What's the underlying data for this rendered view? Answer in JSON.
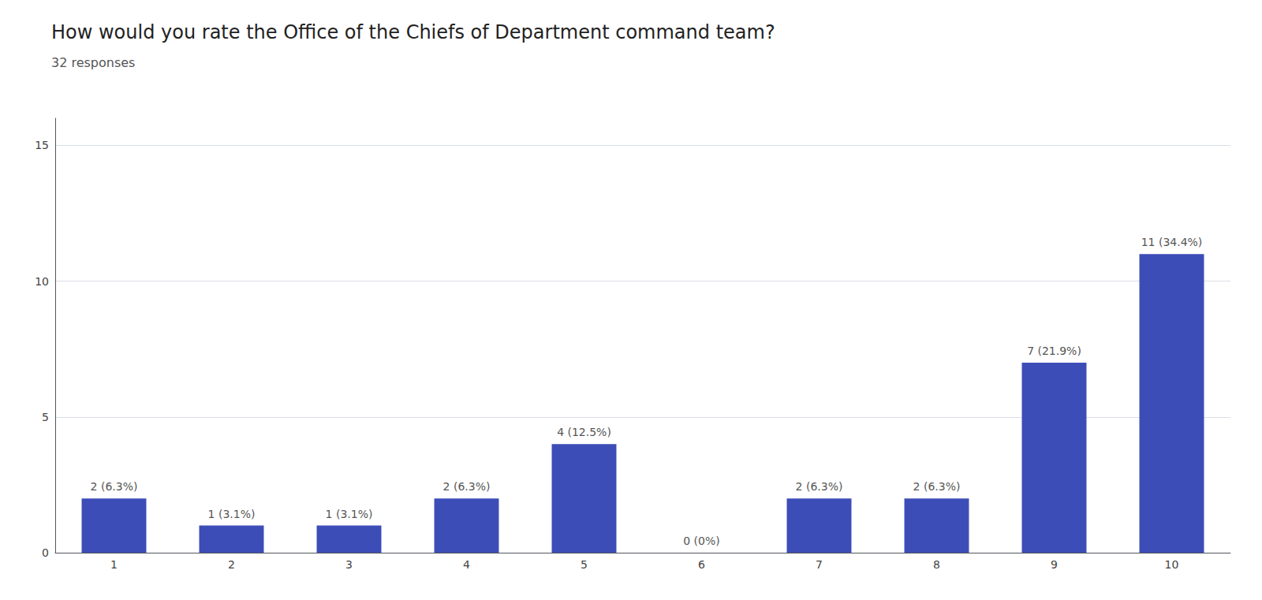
{
  "chart_data": {
    "type": "bar",
    "title": "How would you rate the Office of the Chiefs of Department command team?",
    "subtitle": "32 responses",
    "categories": [
      "1",
      "2",
      "3",
      "4",
      "5",
      "6",
      "7",
      "8",
      "9",
      "10"
    ],
    "values": [
      2,
      1,
      1,
      2,
      4,
      0,
      2,
      2,
      7,
      11
    ],
    "value_labels": [
      "2 (6.3%)",
      "1 (3.1%)",
      "1 (3.1%)",
      "2 (6.3%)",
      "4 (12.5%)",
      "0 (0%)",
      "2 (6.3%)",
      "2 (6.3%)",
      "7 (21.9%)",
      "11 (34.4%)"
    ],
    "color": "#3d4db7",
    "ylim": [
      0,
      16
    ],
    "yticks": [
      0,
      5,
      10,
      15
    ],
    "grid": true
  }
}
